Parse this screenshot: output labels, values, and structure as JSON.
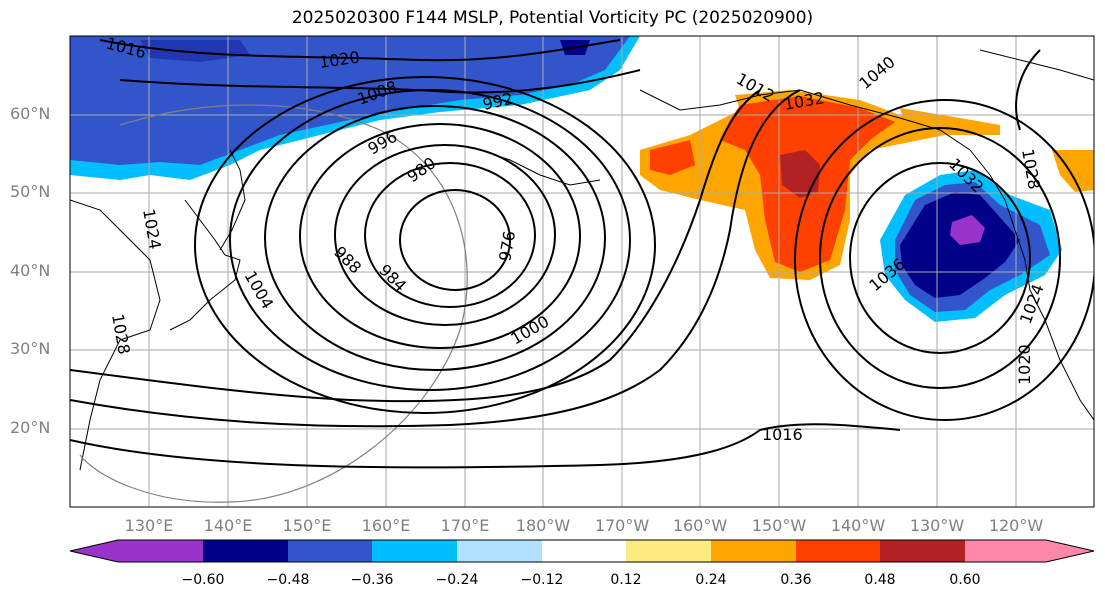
{
  "title": "2025020300 F144 MSLP, Potential Vorticity PC (2025020900)",
  "lat_ticks": [
    "60°N",
    "50°N",
    "40°N",
    "30°N",
    "20°N"
  ],
  "lon_ticks": [
    "130°E",
    "140°E",
    "150°E",
    "160°E",
    "170°E",
    "180°W",
    "170°W",
    "160°W",
    "150°W",
    "140°W",
    "130°W",
    "120°W"
  ],
  "colorbar": {
    "ticks": [
      "−0.60",
      "−0.48",
      "−0.36",
      "−0.24",
      "−0.12",
      "0.12",
      "0.24",
      "0.36",
      "0.48",
      "0.60"
    ],
    "colors": [
      "#9933cc",
      "#000088",
      "#3355cc",
      "#00bfff",
      "#b0e2ff",
      "#ffffff",
      "#ffec80",
      "#ffa500",
      "#ff4000",
      "#b22222",
      "#ff88aa"
    ]
  },
  "isobar_labels": [
    "1016",
    "1020",
    "1008",
    "992",
    "996",
    "980",
    "976",
    "988",
    "984",
    "1000",
    "1004",
    "1028",
    "1024",
    "1016",
    "1020",
    "1024",
    "1036",
    "1032",
    "1028",
    "1032",
    "1040",
    "1012"
  ],
  "map": {
    "extent": {
      "lon_min": 120,
      "lon_max": 250,
      "lat_min": 10,
      "lat_max": 70
    },
    "field": "MSLP contours (hPa) with Potential Vorticity PC shading"
  }
}
